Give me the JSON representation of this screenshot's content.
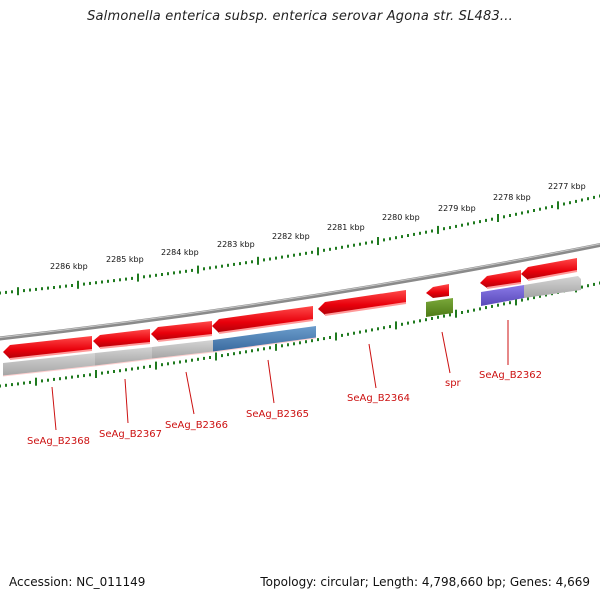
{
  "title": "Salmonella enterica subsp. enterica serovar Agona str. SL483...",
  "footer": {
    "accession": "Accession: NC_011149",
    "stats": "Topology: circular; Length: 4,798,660 bp; Genes: 4,669"
  },
  "ruler": {
    "labels": [
      "2286 kbp",
      "2285 kbp",
      "2284 kbp",
      "2283 kbp",
      "2282 kbp",
      "2281 kbp",
      "2280 kbp",
      "2279 kbp",
      "2278 kbp",
      "2277 kbp"
    ]
  },
  "genes": [
    {
      "label": "SeAg_B2368"
    },
    {
      "label": "SeAg_B2367"
    },
    {
      "label": "SeAg_B2366"
    },
    {
      "label": "SeAg_B2365"
    },
    {
      "label": "SeAg_B2364"
    },
    {
      "label": "spr"
    },
    {
      "label": "SeAg_B2362"
    }
  ],
  "colors": {
    "cds": "#e8000b",
    "gene_grey": "#b0b0b0",
    "steel_blue": "#4a7bb0",
    "olive_green": "#5c8c20",
    "violet": "#6a5acd",
    "backbone": "#8a8a8a",
    "ruler_dots": "#1f7a1f",
    "label": "#cc1111"
  }
}
